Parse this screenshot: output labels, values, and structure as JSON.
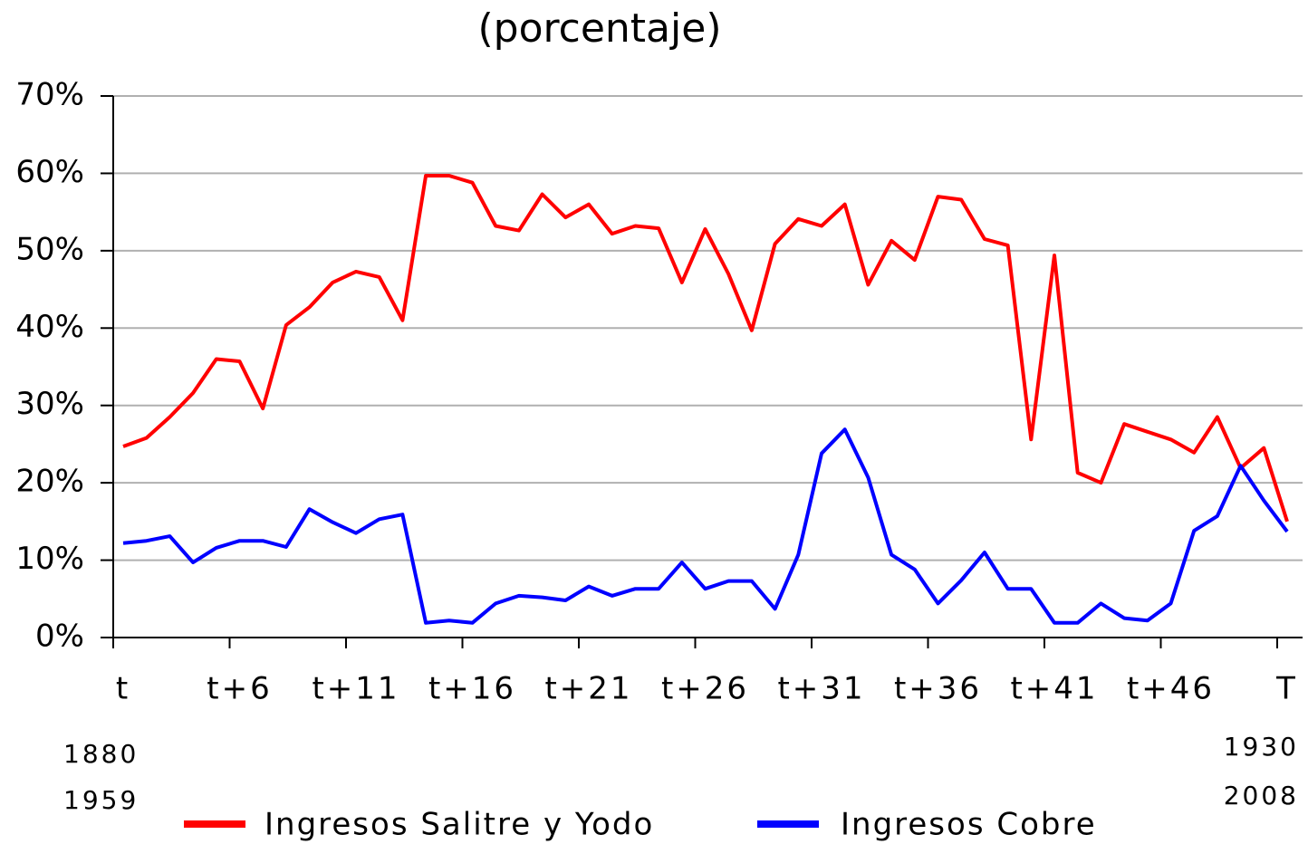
{
  "chart_data": {
    "type": "line",
    "title": "(porcentaje)",
    "categories": [
      "t",
      null,
      null,
      null,
      null,
      "t+6",
      null,
      null,
      null,
      null,
      "t+11",
      null,
      null,
      null,
      null,
      "t+16",
      null,
      null,
      null,
      null,
      "t+21",
      null,
      null,
      null,
      null,
      "t+26",
      null,
      null,
      null,
      null,
      "t+31",
      null,
      null,
      null,
      null,
      "t+36",
      null,
      null,
      null,
      null,
      "t+41",
      null,
      null,
      null,
      null,
      "t+46",
      null,
      null,
      null,
      null,
      "T"
    ],
    "series": [
      {
        "name": "Ingresos Salitre y Yodo",
        "color": "#ff0000",
        "values": [
          24.7,
          25.8,
          28.5,
          31.6,
          36.0,
          35.7,
          29.6,
          40.4,
          42.7,
          45.9,
          47.3,
          46.6,
          41.0,
          59.7,
          59.7,
          58.8,
          53.2,
          52.6,
          57.3,
          54.3,
          56.0,
          52.2,
          53.2,
          52.9,
          45.9,
          52.8,
          47.0,
          39.7,
          50.9,
          54.1,
          53.2,
          56.0,
          45.6,
          51.3,
          48.8,
          57.0,
          56.6,
          51.5,
          50.7,
          25.6,
          49.4,
          21.3,
          20.0,
          27.6,
          26.6,
          25.6,
          23.9,
          28.5,
          21.9,
          24.5,
          15.0
        ]
      },
      {
        "name": "Ingresos Cobre",
        "color": "#0000ff",
        "values": [
          12.2,
          12.5,
          13.1,
          9.7,
          11.6,
          12.5,
          12.5,
          11.7,
          16.6,
          14.9,
          13.5,
          15.3,
          15.9,
          1.9,
          2.2,
          1.9,
          4.4,
          5.4,
          5.2,
          4.8,
          6.6,
          5.4,
          6.3,
          6.3,
          9.7,
          6.3,
          7.3,
          7.3,
          3.7,
          10.7,
          23.8,
          26.9,
          20.7,
          10.7,
          8.8,
          4.4,
          7.4,
          11.0,
          6.3,
          6.3,
          1.9,
          1.9,
          4.4,
          2.5,
          2.2,
          4.4,
          13.8,
          15.7,
          22.2,
          17.7,
          13.7
        ]
      }
    ],
    "ylim": [
      0,
      70
    ],
    "yticks": [
      {
        "value": 0,
        "label": "0%"
      },
      {
        "value": 10,
        "label": "10%"
      },
      {
        "value": 20,
        "label": "20%"
      },
      {
        "value": 30,
        "label": "30%"
      },
      {
        "value": 40,
        "label": "40%"
      },
      {
        "value": 50,
        "label": "50%"
      },
      {
        "value": 60,
        "label": "60%"
      },
      {
        "value": 70,
        "label": "70%"
      }
    ],
    "grid": true,
    "annotations": [
      "1880",
      "1959",
      "1930",
      "2008"
    ]
  }
}
